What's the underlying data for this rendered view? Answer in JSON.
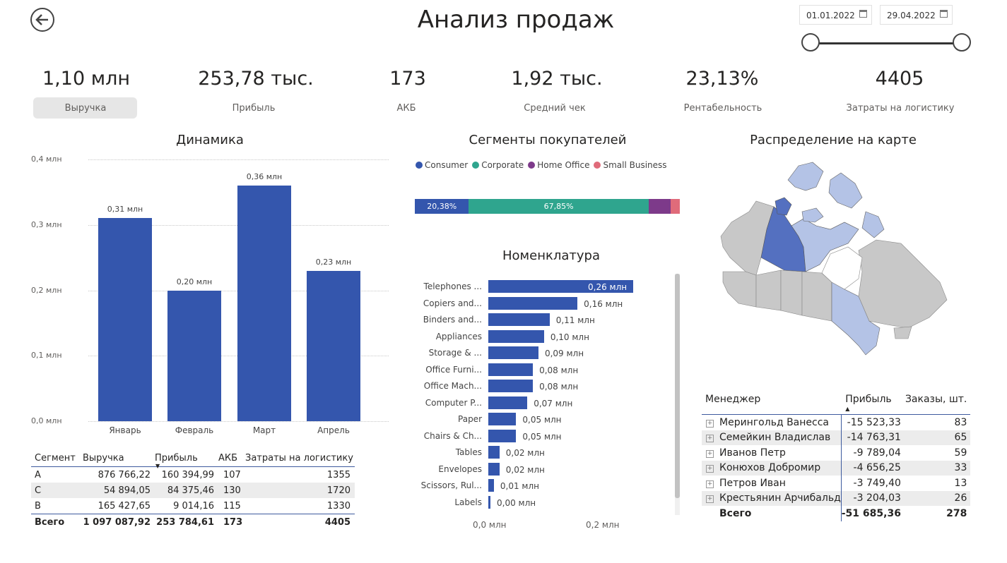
{
  "header": {
    "title": "Анализ продаж",
    "date_from": "01.01.2022",
    "date_to": "29.04.2022"
  },
  "kpis": [
    {
      "value": "1,10 млн",
      "label": "Выручка"
    },
    {
      "value": "253,78 тыс.",
      "label": "Прибыль"
    },
    {
      "value": "173",
      "label": "АКБ"
    },
    {
      "value": "1,92 тыс.",
      "label": "Средний чек"
    },
    {
      "value": "23,13%",
      "label": "Рентабельность"
    },
    {
      "value": "4405",
      "label": "Затраты на логистику"
    }
  ],
  "dynamics": {
    "title": "Динамика",
    "y_ticks": [
      "0,4 млн",
      "0,3 млн",
      "0,2 млн",
      "0,1 млн",
      "0,0 млн"
    ]
  },
  "segments": {
    "title": "Сегменты покупателей",
    "legend": [
      {
        "name": "Consumer",
        "color": "#3456ad"
      },
      {
        "name": "Corporate",
        "color": "#2fa58e"
      },
      {
        "name": "Home Office",
        "color": "#7d3a8a"
      },
      {
        "name": "Small Business",
        "color": "#e06b7a"
      }
    ],
    "stack_labels": [
      "20,38%",
      "67,85%"
    ]
  },
  "nomenclature": {
    "title": "Номенклатура",
    "x_ticks": [
      "0,0 млн",
      "0,2 млн"
    ]
  },
  "map": {
    "title": "Распределение на карте",
    "colors": {
      "high": "#5470c0",
      "mid": "#b4c3e6",
      "none": "#c8c8c8",
      "white": "#ffffff"
    }
  },
  "segment_table": {
    "headers": [
      "Сегмент",
      "Выручка",
      "Прибыль",
      "АКБ",
      "Затраты на логистику"
    ],
    "rows": [
      [
        "A",
        "876 766,22",
        "160 394,99",
        "107",
        "1355"
      ],
      [
        "C",
        "54 894,05",
        "84 375,46",
        "130",
        "1720"
      ],
      [
        "B",
        "165 427,65",
        "9 014,16",
        "115",
        "1330"
      ]
    ],
    "total": [
      "Всего",
      "1 097 087,92",
      "253 784,61",
      "173",
      "4405"
    ]
  },
  "manager_table": {
    "headers": [
      "Менеджер",
      "Прибыль",
      "Заказы, шт."
    ],
    "rows": [
      [
        "Мерингольд Ванесса",
        "-15 523,33",
        "83"
      ],
      [
        "Семейкин Владислав",
        "-14 763,31",
        "65"
      ],
      [
        "Иванов Петр",
        "-9 789,04",
        "59"
      ],
      [
        "Конюхов Добромир",
        "-4 656,25",
        "33"
      ],
      [
        "Петров Иван",
        "-3 749,40",
        "13"
      ],
      [
        "Крестьянин Арчибальд",
        "-3 204,03",
        "26"
      ]
    ],
    "total": [
      "Всего",
      "-51 685,36",
      "278"
    ]
  },
  "chart_data": [
    {
      "type": "bar",
      "title": "Динамика",
      "categories": [
        "Январь",
        "Февраль",
        "Март",
        "Апрель"
      ],
      "values": [
        0.31,
        0.2,
        0.36,
        0.23
      ],
      "data_labels": [
        "0,31 млн",
        "0,20 млн",
        "0,36 млн",
        "0,23 млн"
      ],
      "ylim": [
        0,
        0.4
      ],
      "grid": true
    },
    {
      "type": "bar",
      "title": "Сегменты покупателей",
      "orientation": "horizontal-stacked",
      "categories": [
        "Consumer",
        "Corporate",
        "Home Office",
        "Small Business"
      ],
      "values": [
        20.38,
        67.85,
        8.2,
        3.57
      ]
    },
    {
      "type": "bar",
      "title": "Номенклатура",
      "orientation": "horizontal",
      "categories": [
        "Telephones ...",
        "Copiers and...",
        "Binders and...",
        "Appliances",
        "Storage & ...",
        "Office Furni...",
        "Office Mach...",
        "Computer P...",
        "Paper",
        "Chairs & Ch...",
        "Tables",
        "Envelopes",
        "Scissors, Rul...",
        "Labels"
      ],
      "values": [
        0.26,
        0.16,
        0.11,
        0.1,
        0.09,
        0.08,
        0.08,
        0.07,
        0.05,
        0.05,
        0.02,
        0.02,
        0.01,
        0.0
      ],
      "data_labels": [
        "0,26 млн",
        "0,16 млн",
        "0,11 млн",
        "0,10 млн",
        "0,09 млн",
        "0,08 млн",
        "0,08 млн",
        "0,07 млн",
        "0,05 млн",
        "0,05 млн",
        "0,02 млн",
        "0,02 млн",
        "0,01 млн",
        "0,00 млн"
      ],
      "xlim": [
        0,
        0.27
      ]
    }
  ]
}
